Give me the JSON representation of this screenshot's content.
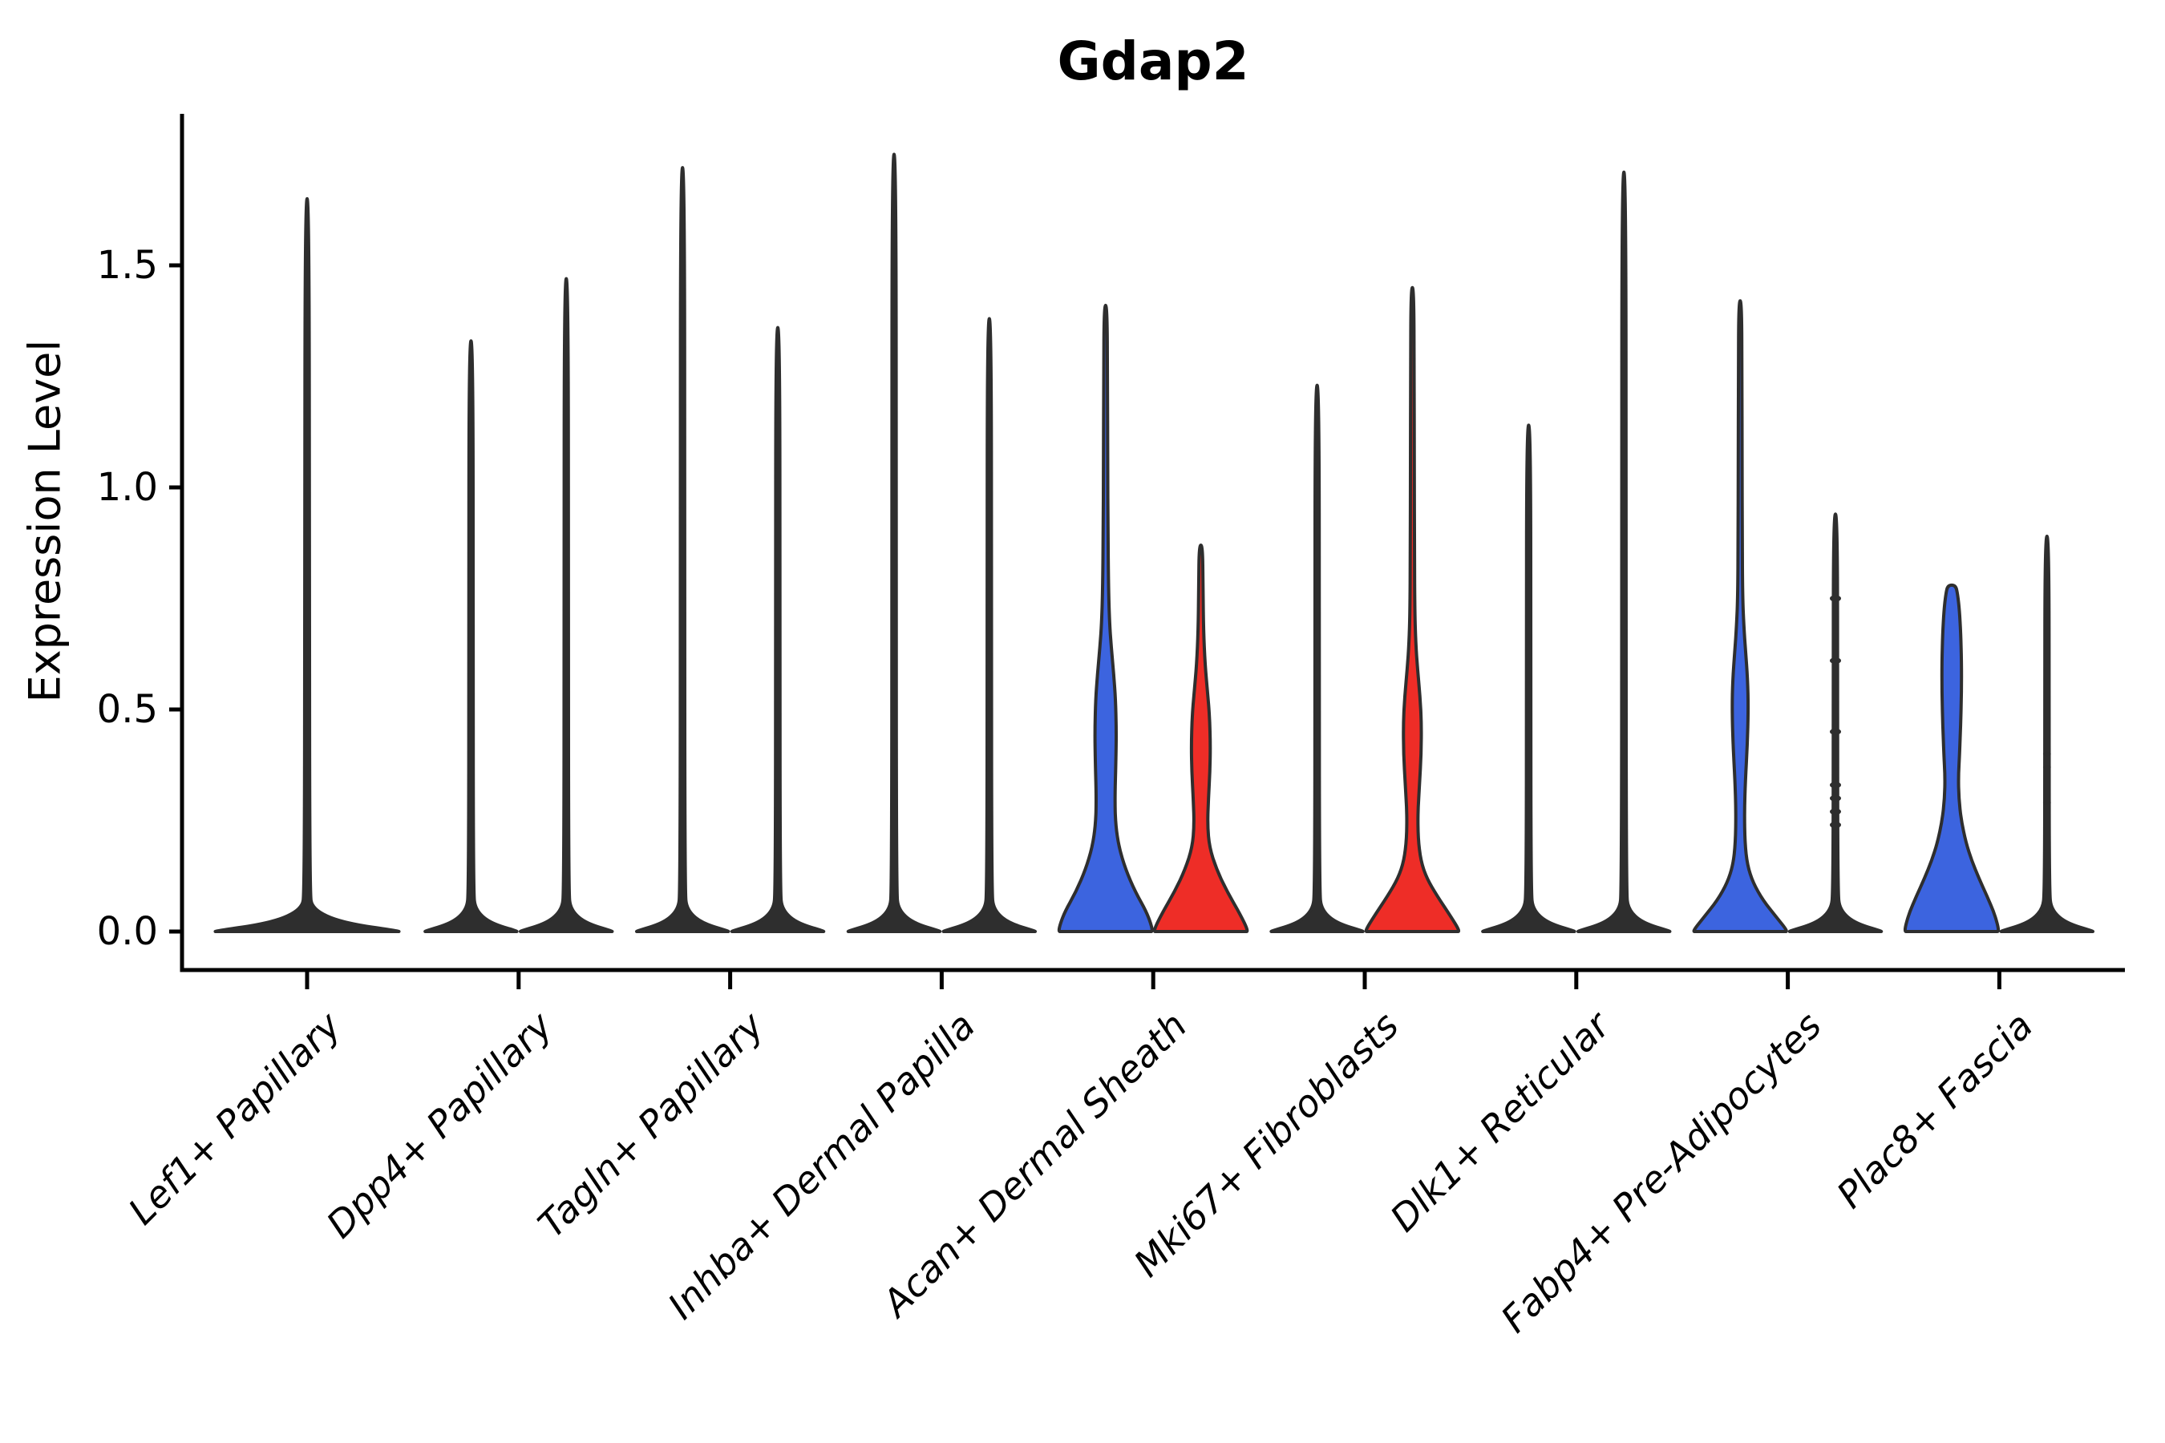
{
  "chart_data": {
    "type": "violin",
    "title": "Gdap2",
    "ylabel": "Expression Level",
    "xlabel": "",
    "ylim": [
      -0.087,
      1.84
    ],
    "ytick_values": [
      0.0,
      0.5,
      1.0,
      1.5
    ],
    "ytick_labels": [
      "0.0",
      "0.5",
      "1.0",
      "1.5"
    ],
    "grid": false,
    "legend": "none",
    "x_labels_rotation_deg": 45,
    "colors": {
      "blue": "#3C64DF",
      "red": "#EE2D27",
      "outline": "#2E2E2E",
      "axis": "#000000",
      "background": "#FFFFFF"
    },
    "categories": [
      "Lef1+ Papillary",
      "Dpp4+ Papillary",
      "Tagln+ Papillary",
      "Inhba+ Dermal Papilla",
      "Acan+ Dermal Sheath",
      "Mki67+ Fibroblasts",
      "Dlk1+ Reticular",
      "Fabp4+ Pre-Adipocytes",
      "Plac8+ Fascia"
    ],
    "groups": [
      {
        "category": "Lef1+ Papillary",
        "violins": [
          {
            "position": "center",
            "fill": "outline",
            "max_expression": 1.65,
            "profile": [
              [
                0,
                1.0
              ],
              [
                0.02,
                0.36
              ],
              [
                0.05,
                0.055
              ],
              [
                0.09,
                0.028
              ],
              [
                0.8,
                0.024
              ],
              [
                1.65,
                0.021
              ]
            ]
          }
        ]
      },
      {
        "category": "Dpp4+ Papillary",
        "violins": [
          {
            "position": "left",
            "fill": "outline",
            "max_expression": 1.33,
            "profile": [
              [
                0,
                1.0
              ],
              [
                0.02,
                0.38
              ],
              [
                0.05,
                0.09
              ],
              [
                0.09,
                0.05
              ],
              [
                0.65,
                0.045
              ],
              [
                1.33,
                0.042
              ]
            ]
          },
          {
            "position": "right",
            "fill": "outline",
            "max_expression": 1.47,
            "profile": [
              [
                0,
                1.0
              ],
              [
                0.02,
                0.38
              ],
              [
                0.05,
                0.09
              ],
              [
                0.09,
                0.05
              ],
              [
                0.7,
                0.045
              ],
              [
                1.47,
                0.042
              ]
            ]
          }
        ]
      },
      {
        "category": "Tagln+ Papillary",
        "violins": [
          {
            "position": "left",
            "fill": "outline",
            "max_expression": 1.72,
            "profile": [
              [
                0,
                1.0
              ],
              [
                0.02,
                0.38
              ],
              [
                0.05,
                0.09
              ],
              [
                0.09,
                0.05
              ],
              [
                0.85,
                0.045
              ],
              [
                1.72,
                0.042
              ]
            ]
          },
          {
            "position": "right",
            "fill": "outline",
            "max_expression": 1.36,
            "profile": [
              [
                0,
                1.0
              ],
              [
                0.02,
                0.38
              ],
              [
                0.05,
                0.09
              ],
              [
                0.09,
                0.05
              ],
              [
                0.68,
                0.045
              ],
              [
                1.36,
                0.042
              ]
            ]
          }
        ]
      },
      {
        "category": "Inhba+ Dermal Papilla",
        "violins": [
          {
            "position": "left",
            "fill": "outline",
            "max_expression": 1.75,
            "profile": [
              [
                0,
                1.0
              ],
              [
                0.02,
                0.38
              ],
              [
                0.05,
                0.09
              ],
              [
                0.09,
                0.05
              ],
              [
                0.87,
                0.045
              ],
              [
                1.75,
                0.042
              ]
            ]
          },
          {
            "position": "right",
            "fill": "outline",
            "max_expression": 1.38,
            "profile": [
              [
                0,
                1.0
              ],
              [
                0.02,
                0.38
              ],
              [
                0.05,
                0.09
              ],
              [
                0.09,
                0.05
              ],
              [
                0.69,
                0.045
              ],
              [
                1.38,
                0.042
              ]
            ]
          }
        ]
      },
      {
        "category": "Acan+ Dermal Sheath",
        "violins": [
          {
            "position": "left",
            "fill": "blue",
            "max_expression": 1.41,
            "profile": [
              [
                0,
                1.0
              ],
              [
                0.04,
                0.88
              ],
              [
                0.09,
                0.62
              ],
              [
                0.14,
                0.42
              ],
              [
                0.19,
                0.28
              ],
              [
                0.24,
                0.21
              ],
              [
                0.3,
                0.195
              ],
              [
                0.38,
                0.215
              ],
              [
                0.45,
                0.225
              ],
              [
                0.52,
                0.21
              ],
              [
                0.58,
                0.17
              ],
              [
                0.64,
                0.12
              ],
              [
                0.7,
                0.08
              ],
              [
                0.78,
                0.06
              ],
              [
                0.9,
                0.05
              ],
              [
                1.05,
                0.045
              ],
              [
                1.25,
                0.04
              ],
              [
                1.41,
                0.03
              ]
            ]
          },
          {
            "position": "right",
            "fill": "red",
            "max_expression": 0.87,
            "profile": [
              [
                0,
                1.0
              ],
              [
                0.04,
                0.82
              ],
              [
                0.09,
                0.55
              ],
              [
                0.14,
                0.33
              ],
              [
                0.19,
                0.18
              ],
              [
                0.24,
                0.14
              ],
              [
                0.3,
                0.16
              ],
              [
                0.36,
                0.19
              ],
              [
                0.42,
                0.2
              ],
              [
                0.48,
                0.185
              ],
              [
                0.54,
                0.14
              ],
              [
                0.6,
                0.09
              ],
              [
                0.68,
                0.055
              ],
              [
                0.78,
                0.045
              ],
              [
                0.87,
                0.035
              ]
            ]
          }
        ]
      },
      {
        "category": "Mki67+ Fibroblasts",
        "violins": [
          {
            "position": "left",
            "fill": "outline",
            "max_expression": 1.23,
            "profile": [
              [
                0,
                1.0
              ],
              [
                0.02,
                0.38
              ],
              [
                0.05,
                0.09
              ],
              [
                0.09,
                0.05
              ],
              [
                0.6,
                0.045
              ],
              [
                1.23,
                0.042
              ]
            ]
          },
          {
            "position": "right",
            "fill": "red",
            "max_expression": 1.45,
            "profile": [
              [
                0,
                1.0
              ],
              [
                0.035,
                0.8
              ],
              [
                0.08,
                0.52
              ],
              [
                0.12,
                0.3
              ],
              [
                0.16,
                0.175
              ],
              [
                0.21,
                0.12
              ],
              [
                0.27,
                0.115
              ],
              [
                0.33,
                0.15
              ],
              [
                0.4,
                0.185
              ],
              [
                0.47,
                0.19
              ],
              [
                0.53,
                0.16
              ],
              [
                0.59,
                0.11
              ],
              [
                0.65,
                0.07
              ],
              [
                0.72,
                0.05
              ],
              [
                0.85,
                0.045
              ],
              [
                1.05,
                0.04
              ],
              [
                1.25,
                0.038
              ],
              [
                1.45,
                0.03
              ]
            ]
          }
        ]
      },
      {
        "category": "Dlk1+ Reticular",
        "violins": [
          {
            "position": "left",
            "fill": "outline",
            "max_expression": 1.14,
            "profile": [
              [
                0,
                1.0
              ],
              [
                0.02,
                0.38
              ],
              [
                0.05,
                0.09
              ],
              [
                0.09,
                0.05
              ],
              [
                0.57,
                0.045
              ],
              [
                1.14,
                0.042
              ]
            ]
          },
          {
            "position": "right",
            "fill": "outline",
            "max_expression": 1.71,
            "profile": [
              [
                0,
                1.0
              ],
              [
                0.02,
                0.38
              ],
              [
                0.05,
                0.09
              ],
              [
                0.09,
                0.05
              ],
              [
                0.85,
                0.045
              ],
              [
                1.71,
                0.042
              ]
            ]
          }
        ]
      },
      {
        "category": "Fabp4+ Pre-Adipocytes",
        "violins": [
          {
            "position": "left",
            "fill": "blue",
            "max_expression": 1.42,
            "profile": [
              [
                0,
                1.0
              ],
              [
                0.03,
                0.78
              ],
              [
                0.07,
                0.48
              ],
              [
                0.11,
                0.27
              ],
              [
                0.15,
                0.15
              ],
              [
                0.2,
                0.1
              ],
              [
                0.27,
                0.09
              ],
              [
                0.34,
                0.11
              ],
              [
                0.42,
                0.15
              ],
              [
                0.5,
                0.17
              ],
              [
                0.57,
                0.155
              ],
              [
                0.63,
                0.115
              ],
              [
                0.69,
                0.075
              ],
              [
                0.76,
                0.05
              ],
              [
                0.88,
                0.045
              ],
              [
                1.05,
                0.04
              ],
              [
                1.25,
                0.038
              ],
              [
                1.42,
                0.03
              ]
            ]
          },
          {
            "position": "right",
            "fill": "outline",
            "max_expression": 0.94,
            "profile": [
              [
                0,
                1.0
              ],
              [
                0.02,
                0.38
              ],
              [
                0.05,
                0.09
              ],
              [
                0.09,
                0.05
              ],
              [
                0.5,
                0.045
              ],
              [
                0.94,
                0.042
              ]
            ],
            "point_values": [
              0.75,
              0.61,
              0.45,
              0.33,
              0.3,
              0.27,
              0.24
            ]
          }
        ]
      },
      {
        "category": "Plac8+ Fascia",
        "violins": [
          {
            "position": "left",
            "fill": "blue",
            "max_expression": 0.78,
            "blunt_top": true,
            "profile": [
              [
                0,
                1.0
              ],
              [
                0.04,
                0.9
              ],
              [
                0.08,
                0.74
              ],
              [
                0.12,
                0.57
              ],
              [
                0.16,
                0.42
              ],
              [
                0.2,
                0.3
              ],
              [
                0.25,
                0.2
              ],
              [
                0.3,
                0.15
              ],
              [
                0.35,
                0.14
              ],
              [
                0.4,
                0.165
              ],
              [
                0.47,
                0.19
              ],
              [
                0.54,
                0.205
              ],
              [
                0.61,
                0.205
              ],
              [
                0.67,
                0.19
              ],
              [
                0.72,
                0.165
              ],
              [
                0.76,
                0.125
              ],
              [
                0.78,
                0.08
              ]
            ]
          },
          {
            "position": "right",
            "fill": "outline",
            "max_expression": 0.89,
            "profile": [
              [
                0,
                1.0
              ],
              [
                0.02,
                0.38
              ],
              [
                0.05,
                0.09
              ],
              [
                0.09,
                0.05
              ],
              [
                0.45,
                0.045
              ],
              [
                0.89,
                0.042
              ]
            ],
            "point_values": [
              0.4,
              0.37,
              0.29
            ],
            "points_faint": true
          }
        ]
      }
    ]
  }
}
